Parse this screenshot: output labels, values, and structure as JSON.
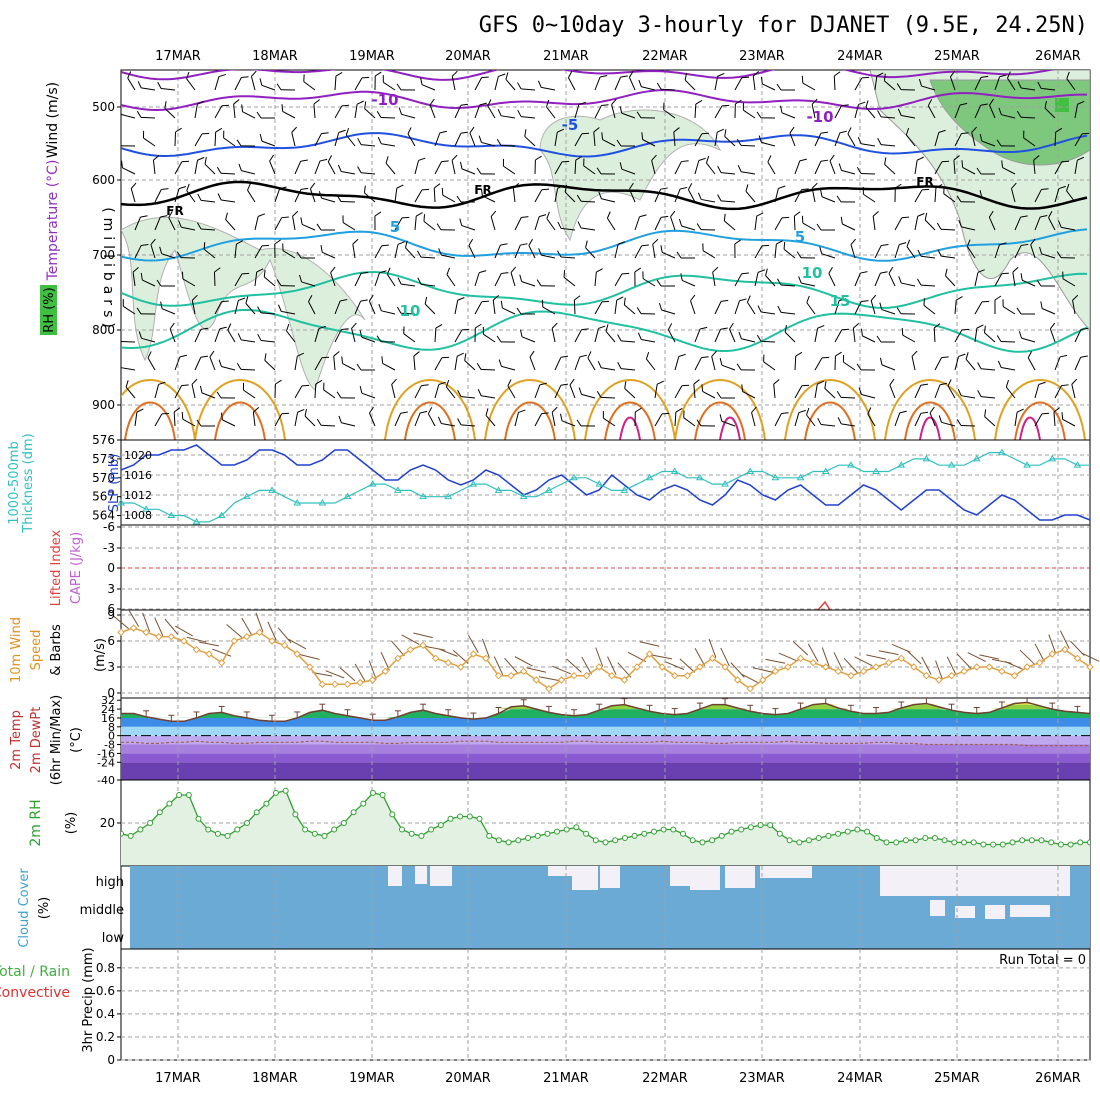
{
  "title": "GFS 0~10day 3-hourly for DJANET (9.5E, 24.25N)",
  "dates": [
    "17MAR",
    "18MAR",
    "19MAR",
    "20MAR",
    "21MAR",
    "22MAR",
    "23MAR",
    "24MAR",
    "25MAR",
    "26MAR"
  ],
  "colors": {
    "temp_warm": "#e0a020",
    "temp_cool": "#20c0a0",
    "temp_cold": "#2050e0",
    "temp_very_cold": "#9020c0",
    "freezing": "#000000",
    "rh_fill": "#dcefdc",
    "rh_dark": "#40c040",
    "thickness": "#30c0c0",
    "slp": "#2040d0",
    "wind_speed": "#e0a040",
    "cloud": "#6aaad4",
    "rh2m": "#30a030",
    "precip_total": "#40b040",
    "precip_conv": "#e03030"
  },
  "panels": {
    "upper": {
      "labels": [
        "Wind (m/s)",
        "Temperature (°C)",
        "RH (%)"
      ],
      "axis_label": "(millibars)",
      "y_ticks": [
        "500",
        "600",
        "700",
        "800",
        "900"
      ],
      "contour_labels": [
        "-10",
        "-10",
        "-5",
        "FR",
        "FR",
        "FR",
        "5",
        "5",
        "10",
        "10",
        "15"
      ]
    },
    "thickness": {
      "labels": [
        "1000-500mb",
        "Thickness (dm)",
        "SLP (mb)"
      ],
      "left_ticks": [
        "576",
        "573",
        "570",
        "567",
        "564"
      ],
      "right_ticks": [
        "1020",
        "1016",
        "1012",
        "1008"
      ]
    },
    "stability": {
      "labels": [
        "Lifted Index",
        "CAPE (J/kg)"
      ],
      "ticks": [
        "-6",
        "-3",
        "0",
        "3",
        "6"
      ]
    },
    "wind10m": {
      "labels": [
        "10m Wind",
        "Speed",
        "& Barbs"
      ],
      "unit": "(m/s)",
      "ticks": [
        "9",
        "6",
        "3",
        "0"
      ]
    },
    "temp2m": {
      "labels": [
        "2m Temp",
        "2m DewPt",
        "(6hr Min/Max)"
      ],
      "unit": "(°C)",
      "ticks": [
        "32",
        "24",
        "16",
        "8",
        "0",
        "-8",
        "-16",
        "-24",
        "-40"
      ]
    },
    "rh2m": {
      "labels": [
        "2m RH"
      ],
      "unit": "(%)",
      "ticks": [
        "20"
      ]
    },
    "cloud": {
      "labels": [
        "Cloud Cover",
        "(%)"
      ],
      "levels": [
        "high",
        "middle",
        "low"
      ]
    },
    "precip": {
      "labels": [
        "Total / Rain",
        "Convective",
        "3hr Precip (mm)"
      ],
      "ticks": [
        "0.8",
        "0.6",
        "0.4",
        "0.2",
        "0"
      ],
      "run_total": "Run Total = 0"
    }
  },
  "chart_data": [
    {
      "type": "line",
      "title": "1000-500mb Thickness (dm) / SLP (mb)",
      "x_start": "16MAR 12Z",
      "x_step_hours": 3,
      "series": [
        {
          "name": "SLP (mb)",
          "ylim": [
            1006,
            1023
          ],
          "values": [
            1017,
            1018,
            1020,
            1020,
            1021,
            1021,
            1022,
            1020,
            1018,
            1018,
            1019,
            1021,
            1021,
            1020,
            1018,
            1018,
            1019,
            1021,
            1021,
            1019,
            1017,
            1015,
            1015,
            1017,
            1018,
            1017,
            1015,
            1014,
            1015,
            1017,
            1016,
            1014,
            1012,
            1013,
            1015,
            1016,
            1014,
            1012,
            1013,
            1016,
            1014,
            1012,
            1011,
            1013,
            1014,
            1013,
            1011,
            1010,
            1012,
            1015,
            1014,
            1012,
            1011,
            1013,
            1014,
            1012,
            1010,
            1010,
            1012,
            1014,
            1013,
            1011,
            1009,
            1011,
            1013,
            1013,
            1011,
            1009,
            1008,
            1010,
            1012,
            1011,
            1009,
            1007,
            1007,
            1008,
            1008,
            1007
          ]
        },
        {
          "name": "1000-500mb Thickness (dm)",
          "ylim": [
            562.5,
            576
          ],
          "values": [
            566,
            566,
            565,
            565,
            564,
            564,
            563,
            563,
            564,
            566,
            567,
            568,
            568,
            567,
            566,
            566,
            566,
            566,
            567,
            568,
            569,
            569,
            568,
            568,
            567,
            567,
            567,
            568,
            569,
            569,
            568,
            568,
            567,
            567,
            568,
            569,
            570,
            570,
            569,
            568,
            568,
            569,
            570,
            571,
            571,
            570,
            570,
            569,
            569,
            570,
            571,
            571,
            570,
            570,
            570,
            571,
            571,
            572,
            572,
            571,
            571,
            571,
            572,
            573,
            573,
            572,
            572,
            572,
            573,
            574,
            574,
            573,
            572,
            572,
            573,
            573,
            572,
            572
          ]
        }
      ]
    },
    {
      "type": "line",
      "title": "10m Wind Speed (m/s)",
      "x_start": "16MAR 12Z",
      "x_step_hours": 3,
      "ylim": [
        0,
        9
      ],
      "values": [
        7,
        7.5,
        7,
        6.5,
        6.5,
        6,
        5,
        4.5,
        3.5,
        6,
        6.5,
        7,
        6,
        5.5,
        4.5,
        3,
        1,
        1,
        1,
        1.2,
        1.5,
        2.5,
        4,
        5,
        5.5,
        4,
        3.5,
        3,
        4.5,
        4,
        2,
        2,
        2.5,
        1.5,
        0.5,
        1.5,
        2,
        2,
        3,
        2,
        1.5,
        3,
        4.5,
        3,
        2,
        2,
        3,
        4,
        3,
        1.5,
        0.5,
        1.5,
        2.5,
        3,
        4,
        3.5,
        3,
        2.5,
        2,
        2.5,
        3,
        3.5,
        4,
        3,
        2,
        1.5,
        2,
        2.5,
        3,
        3,
        2.5,
        2,
        3,
        3.5,
        4.5,
        5,
        4,
        3
      ]
    },
    {
      "type": "area",
      "title": "2m Temp (°C)",
      "x_start": "16MAR 12Z",
      "x_step_hours": 3,
      "ylim": [
        -40,
        32
      ],
      "series": [
        {
          "name": "2m Temp",
          "values": [
            20,
            20,
            17,
            15,
            13,
            13,
            16,
            20,
            21,
            18,
            16,
            14,
            13,
            13,
            16,
            21,
            23,
            20,
            18,
            16,
            14,
            14,
            17,
            21,
            23,
            20,
            18,
            16,
            15,
            16,
            20,
            26,
            27,
            24,
            21,
            19,
            18,
            19,
            23,
            27,
            28,
            25,
            22,
            20,
            19,
            20,
            24,
            28,
            28,
            25,
            22,
            20,
            19,
            20,
            24,
            28,
            29,
            25,
            22,
            20,
            20,
            21,
            25,
            28,
            29,
            26,
            23,
            21,
            20,
            21,
            25,
            29,
            30,
            27,
            24,
            22,
            21,
            20
          ]
        },
        {
          "name": "2m DewPt",
          "values": [
            -6,
            -6,
            -7,
            -7,
            -6,
            -6,
            -5,
            -6,
            -6,
            -7,
            -7,
            -6,
            -6,
            -6,
            -6,
            -5,
            -5,
            -6,
            -6,
            -6,
            -6,
            -7,
            -7,
            -6,
            -6,
            -6,
            -6,
            -5,
            -5,
            -5,
            -6,
            -6,
            -6,
            -6,
            -6,
            -6,
            -5,
            -5,
            -6,
            -6,
            -6,
            -6,
            -6,
            -5,
            -6,
            -6,
            -6,
            -7,
            -7,
            -6,
            -6,
            -6,
            -6,
            -5,
            -6,
            -6,
            -7,
            -7,
            -7,
            -7,
            -6,
            -6,
            -7,
            -7,
            -8,
            -8,
            -8,
            -8,
            -8,
            -8,
            -8,
            -8,
            -9,
            -9,
            -9,
            -9,
            -9,
            -9
          ]
        }
      ]
    },
    {
      "type": "line",
      "title": "2m RH (%)",
      "x_start": "16MAR 12Z",
      "x_step_hours": 3,
      "ylim": [
        0,
        40
      ],
      "values": [
        15,
        14,
        17,
        20,
        25,
        29,
        33,
        33,
        22,
        17,
        15,
        14,
        17,
        20,
        25,
        29,
        34,
        35,
        24,
        17,
        15,
        14,
        17,
        20,
        25,
        29,
        34,
        33,
        24,
        17,
        15,
        14,
        17,
        19,
        22,
        23,
        23,
        22,
        14,
        12,
        11,
        12,
        13,
        14,
        15,
        16,
        17,
        18,
        15,
        12,
        11,
        12,
        13,
        14,
        15,
        16,
        17,
        17,
        15,
        12,
        11,
        12,
        14,
        16,
        17,
        18,
        19,
        19,
        15,
        12,
        11,
        12,
        13,
        14,
        15,
        16,
        17,
        16,
        13,
        11,
        11,
        12,
        12,
        13,
        13,
        12,
        11,
        11,
        11,
        10,
        10,
        10,
        11,
        12,
        12,
        12,
        11,
        10,
        10,
        11,
        11
      ]
    }
  ]
}
